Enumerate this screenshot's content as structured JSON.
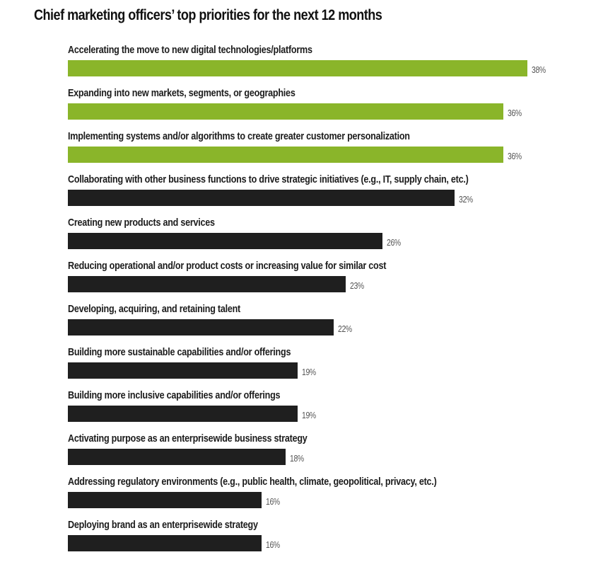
{
  "title": "Chief marketing officers’ top priorities for the next 12 months",
  "colors": {
    "highlight": "#8ab52a",
    "default": "#1f1f1f",
    "value_text": "#555555"
  },
  "chart_data": {
    "type": "bar",
    "orientation": "horizontal",
    "title": "Chief marketing officers’ top priorities for the next 12 months",
    "xlabel": "",
    "ylabel": "",
    "unit": "%",
    "xlim": [
      0,
      40
    ],
    "grid": false,
    "legend": null,
    "categories": [
      "Accelerating the move to new digital technologies/platforms",
      "Expanding into new markets, segments, or geographies",
      "Implementing systems and/or algorithms to create greater customer personalization",
      "Collaborating with other business functions to drive strategic initiatives (e.g., IT, supply chain, etc.)",
      "Creating new products and services",
      "Reducing operational and/or product costs or increasing value for similar cost",
      "Developing, acquiring, and retaining talent",
      "Building more sustainable capabilities and/or offerings",
      "Building more inclusive capabilities and/or offerings",
      "Activating purpose as an enterprisewide business strategy",
      "Addressing regulatory environments (e.g., public health, climate, geopolitical, privacy, etc.)",
      "Deploying brand as an enterprisewide strategy"
    ],
    "values": [
      38,
      36,
      36,
      32,
      26,
      23,
      22,
      19,
      19,
      18,
      16,
      16
    ],
    "highlighted": [
      true,
      true,
      true,
      false,
      false,
      false,
      false,
      false,
      false,
      false,
      false,
      false
    ],
    "value_labels": [
      "38%",
      "36%",
      "36%",
      "32%",
      "26%",
      "23%",
      "22%",
      "19%",
      "19%",
      "18%",
      "16%",
      "16%"
    ]
  }
}
